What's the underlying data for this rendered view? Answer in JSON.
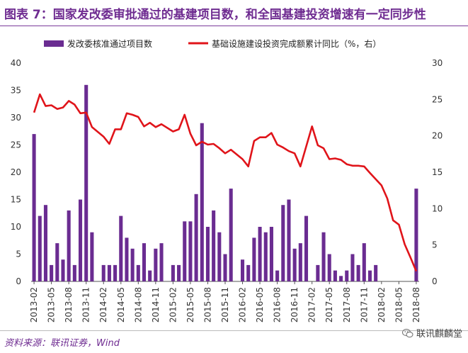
{
  "title": "图表 7：国家发改委审批通过的基建项目数，和全国基建投资增速有一定同步性",
  "source": "资料来源：联讯证券，Wind",
  "watermark": "联讯麒麟堂",
  "colors": {
    "bar": "#6a2c91",
    "line": "#e0141a",
    "title": "#6f2c91"
  },
  "chart_data": {
    "type": "bar",
    "x": [
      "2013-02",
      "2013-03",
      "2013-04",
      "2013-05",
      "2013-06",
      "2013-07",
      "2013-08",
      "2013-09",
      "2013-10",
      "2013-11",
      "2013-12",
      "2014-01",
      "2014-02",
      "2014-03",
      "2014-04",
      "2014-05",
      "2014-06",
      "2014-07",
      "2014-08",
      "2014-09",
      "2014-10",
      "2014-11",
      "2014-12",
      "2015-01",
      "2015-02",
      "2015-03",
      "2015-04",
      "2015-05",
      "2015-06",
      "2015-07",
      "2015-08",
      "2015-09",
      "2015-10",
      "2015-11",
      "2015-12",
      "2016-01",
      "2016-02",
      "2016-03",
      "2016-04",
      "2016-05",
      "2016-06",
      "2016-07",
      "2016-08",
      "2016-09",
      "2016-10",
      "2016-11",
      "2016-12",
      "2017-01",
      "2017-02",
      "2017-03",
      "2017-04",
      "2017-05",
      "2017-06",
      "2017-07",
      "2017-08",
      "2017-09",
      "2017-10",
      "2017-11",
      "2017-12",
      "2018-01",
      "2018-02",
      "2018-03",
      "2018-04",
      "2018-05",
      "2018-06",
      "2018-07",
      "2018-08"
    ],
    "x_tick_labels": [
      "2013-02",
      "2013-05",
      "2013-08",
      "2013-11",
      "2014-02",
      "2014-05",
      "2014-08",
      "2014-11",
      "2015-02",
      "2015-05",
      "2015-08",
      "2015-11",
      "2016-02",
      "2016-05",
      "2016-08",
      "2016-11",
      "2017-02",
      "2017-05",
      "2017-08",
      "2017-11",
      "2018-02",
      "2018-05",
      "2018-08"
    ],
    "series": [
      {
        "name": "发改委核准通过项目数",
        "type": "bar",
        "axis": "left",
        "values": [
          27,
          12,
          14,
          3,
          7,
          4,
          13,
          3,
          15,
          36,
          9,
          null,
          3,
          3,
          3,
          12,
          8,
          6,
          3,
          7,
          2,
          6,
          7,
          null,
          3,
          3,
          11,
          11,
          16,
          29,
          10,
          13,
          9,
          5,
          17,
          null,
          4,
          3,
          8,
          10,
          9,
          10,
          2,
          14,
          15,
          6,
          7,
          12,
          null,
          3,
          9,
          5,
          2,
          1,
          2,
          5,
          3,
          7,
          2,
          3,
          null,
          null,
          null,
          null,
          null,
          null,
          17
        ]
      },
      {
        "name": "基础设施建设投资完成额累计同比（%，右）",
        "type": "line",
        "axis": "right",
        "values": [
          23.2,
          25.7,
          24.1,
          24.2,
          23.7,
          23.9,
          24.8,
          24.3,
          23.1,
          23.2,
          21.2,
          null,
          19.9,
          18.9,
          20.9,
          20.9,
          23.1,
          22.9,
          22.6,
          21.3,
          21.8,
          21.2,
          21.6,
          null,
          20.6,
          20.9,
          22.9,
          20.3,
          18.7,
          19.2,
          18.8,
          18.9,
          18.3,
          17.6,
          18.1,
          null,
          16.8,
          15.8,
          19.3,
          19.8,
          19.8,
          20.4,
          18.8,
          18.4,
          17.9,
          17.6,
          15.8,
          null,
          21.3,
          18.7,
          18.3,
          16.8,
          16.9,
          16.7,
          16.1,
          15.9,
          15.9,
          15.8,
          14.9,
          null,
          13.2,
          11.4,
          8.4,
          7.8,
          5.1,
          3.3,
          1.4
        ]
      }
    ],
    "y_left": {
      "min": 0,
      "max": 40,
      "ticks": [
        0,
        5,
        10,
        15,
        20,
        25,
        30,
        35,
        40
      ]
    },
    "y_right": {
      "min": 0,
      "max": 30,
      "ticks": [
        0,
        5,
        10,
        15,
        20,
        25,
        30
      ]
    },
    "legend_position": "top",
    "grid": false
  }
}
